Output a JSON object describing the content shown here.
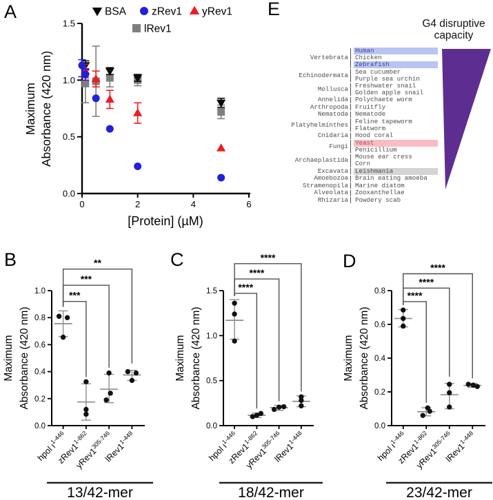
{
  "figure": {
    "background": "#ffffff",
    "panel_letters": {
      "a": "A",
      "b": "B",
      "c": "C",
      "d": "D",
      "e": "E"
    }
  },
  "colors": {
    "bsa_black": "#0a0a0a",
    "zrev1_blue": "#2020dd",
    "yrev1_red": "#ed1c24",
    "lrev1_gray": "#7f7f7f",
    "bracket_gray": "#4d4d4d",
    "mean_err_gray": "#8c8c8c",
    "point_black": "#111111",
    "triangle_purple": "#5e2d91",
    "hl_blue": "#b9c4f0",
    "hl_red": "#f9bdc1",
    "hl_gray": "#d4d4d4"
  },
  "phylo": {
    "heading_line1": "G4 disruptive",
    "heading_line2": "capacity",
    "groups": [
      {
        "name": "Vertebrata",
        "species": [
          {
            "label": "Human",
            "highlight": "blue"
          },
          {
            "label": "Chicken",
            "highlight": ""
          },
          {
            "label": "Zebrafish",
            "highlight": "blue"
          }
        ]
      },
      {
        "name": "Echinodermata",
        "species": [
          {
            "label": "Sea cucumber",
            "highlight": ""
          },
          {
            "label": "Purple sea urchin",
            "highlight": ""
          }
        ]
      },
      {
        "name": "Mollusca",
        "species": [
          {
            "label": "Freshwater snail",
            "highlight": ""
          },
          {
            "label": "Golden apple snail",
            "highlight": ""
          }
        ]
      },
      {
        "name": "Annelida",
        "species": [
          {
            "label": "Polychaete worm",
            "highlight": ""
          }
        ]
      },
      {
        "name": "Arthropoda",
        "species": [
          {
            "label": "Fruitfly",
            "highlight": ""
          }
        ]
      },
      {
        "name": "Nematoda",
        "species": [
          {
            "label": "Nematode",
            "highlight": ""
          }
        ]
      },
      {
        "name": "Platyhelminthes",
        "species": [
          {
            "label": "Feline tapeworm",
            "highlight": ""
          },
          {
            "label": "Flatworm",
            "highlight": ""
          }
        ]
      },
      {
        "name": "Cnidaria",
        "species": [
          {
            "label": "Hood coral",
            "highlight": ""
          }
        ]
      },
      {
        "name": "Fungi",
        "species": [
          {
            "label": "Yeast",
            "highlight": "red"
          },
          {
            "label": "Penicillium",
            "highlight": ""
          }
        ]
      },
      {
        "name": "Archaeplastida",
        "species": [
          {
            "label": "Mouse ear cress",
            "highlight": ""
          },
          {
            "label": "Corn",
            "highlight": ""
          }
        ]
      },
      {
        "name": "Excavata",
        "species": [
          {
            "label": "Leishmania",
            "highlight": "gray"
          }
        ]
      },
      {
        "name": "Amoebozoa",
        "species": [
          {
            "label": "Brain eating amoeba",
            "highlight": ""
          }
        ]
      },
      {
        "name": "Stramenopila",
        "species": [
          {
            "label": "Marine diatom",
            "highlight": ""
          }
        ]
      },
      {
        "name": "Alveolata",
        "species": [
          {
            "label": "Zooxanthellae",
            "highlight": ""
          }
        ]
      },
      {
        "name": "Rhizaria",
        "species": [
          {
            "label": "Powdery scab",
            "highlight": ""
          }
        ]
      }
    ]
  },
  "chart_data": [
    {
      "id": "A",
      "type": "scatter",
      "xlabel": "[Protein] (µM)",
      "ylabel": "Maximum Absorbance (420 nm)",
      "ylabel_lines": [
        "Maximum",
        "Absorbance (420 nm)"
      ],
      "xlim": [
        0,
        6
      ],
      "xticks": [
        0,
        2,
        4,
        6
      ],
      "xtick_labels": [
        "0",
        "2",
        "4",
        "6"
      ],
      "ylim": [
        0,
        1.5
      ],
      "yticks": [
        0,
        0.5,
        1.0,
        1.5
      ],
      "ytick_labels": [
        "0.0",
        "0.5",
        "1.0",
        "1.5"
      ],
      "legend_position": "top-center",
      "grid": false,
      "series": [
        {
          "name": "BSA",
          "marker": "triangle-down",
          "color": "#0a0a0a",
          "points": [
            {
              "x": 0.12,
              "y": 1.13,
              "lo": 1.09,
              "hi": 1.17
            },
            {
              "x": 1,
              "y": 1.08,
              "lo": 1.05,
              "hi": 1.11
            },
            {
              "x": 2,
              "y": 1.02,
              "lo": 0.99,
              "hi": 1.05
            },
            {
              "x": 5,
              "y": 0.8,
              "lo": 0.76,
              "hi": 0.84
            }
          ]
        },
        {
          "name": "zRev1",
          "marker": "circle",
          "color": "#2020dd",
          "points": [
            {
              "x": 0,
              "y": 1.13,
              "lo": 1.03,
              "hi": 1.18
            },
            {
              "x": 0.12,
              "y": 1.05,
              "lo": 1.0,
              "hi": 1.1
            },
            {
              "x": 0.5,
              "y": 0.84
            },
            {
              "x": 1,
              "y": 0.57
            },
            {
              "x": 2,
              "y": 0.24
            },
            {
              "x": 5,
              "y": 0.14
            }
          ]
        },
        {
          "name": "yRev1",
          "marker": "triangle-up",
          "color": "#ed1c24",
          "points": [
            {
              "x": 0.12,
              "y": 1.08,
              "lo": 1.02,
              "hi": 1.14
            },
            {
              "x": 0.5,
              "y": 1.01,
              "lo": 0.94,
              "hi": 1.08
            },
            {
              "x": 1,
              "y": 0.83,
              "lo": 0.75,
              "hi": 0.91
            },
            {
              "x": 2,
              "y": 0.71,
              "lo": 0.62,
              "hi": 0.8
            },
            {
              "x": 5,
              "y": 0.4
            }
          ]
        },
        {
          "name": "lRev1",
          "marker": "square",
          "color": "#7f7f7f",
          "points": [
            {
              "x": 0.12,
              "y": 0.97,
              "lo": 0.8,
              "hi": 1.1
            },
            {
              "x": 0.5,
              "y": 0.99,
              "lo": 0.68,
              "hi": 1.3
            },
            {
              "x": 1,
              "y": 1.02,
              "lo": 0.94,
              "hi": 1.1
            },
            {
              "x": 2,
              "y": 1.0,
              "lo": 0.95,
              "hi": 1.04
            },
            {
              "x": 5,
              "y": 0.72,
              "lo": 0.66,
              "hi": 0.78
            }
          ]
        }
      ]
    },
    {
      "id": "B",
      "type": "dot-plot",
      "xlabel_group": "13/42-mer",
      "ylabel": "Maximum Absorbance (420 nm)",
      "ylabel_lines": [
        "Maximum",
        "Absorbance (420 nm)"
      ],
      "ylim": [
        0,
        1.0
      ],
      "yticks": [
        0,
        0.2,
        0.4,
        0.6,
        0.8,
        1.0
      ],
      "ytick_labels": [
        "0.0",
        "0.2",
        "0.4",
        "0.6",
        "0.8",
        "1.0"
      ],
      "categories": [
        {
          "base": "hpol ι",
          "sup": "1-446"
        },
        {
          "base": "zRev1",
          "sup": "1-862"
        },
        {
          "base": "yRev1",
          "sup": "305-746"
        },
        {
          "base": "lRev1",
          "sup": "1-448"
        }
      ],
      "groups": [
        {
          "points": [
            0.81,
            0.8,
            0.655
          ],
          "dx": [
            -6,
            6,
            0
          ],
          "mean": 0.755,
          "err_lo": 0.66,
          "err_hi": 0.85
        },
        {
          "points": [
            0.325,
            0.12,
            0.085
          ],
          "dx": [
            0,
            0,
            0
          ],
          "mean": 0.175,
          "err_lo": 0.04,
          "err_hi": 0.31
        },
        {
          "points": [
            0.39,
            0.24,
            0.19
          ],
          "dx": [
            0,
            2,
            -4
          ],
          "mean": 0.27,
          "err_lo": 0.17,
          "err_hi": 0.38
        },
        {
          "points": [
            0.4,
            0.39,
            0.335
          ],
          "dx": [
            -6,
            6,
            0
          ],
          "mean": 0.375,
          "err_lo": 0.335,
          "err_hi": 0.41
        }
      ],
      "brackets": [
        {
          "from": 0,
          "to": 1,
          "label": "***",
          "level": 0.92,
          "left_end": 0.88,
          "right_end": 0.36
        },
        {
          "from": 0,
          "to": 2,
          "label": "***",
          "level": 1.04,
          "left_end": 0.88,
          "right_end": 0.43
        },
        {
          "from": 0,
          "to": 3,
          "label": "**",
          "level": 1.16,
          "left_end": 0.88,
          "right_end": 0.46
        }
      ]
    },
    {
      "id": "C",
      "type": "dot-plot",
      "xlabel_group": "18/42-mer",
      "ylabel": "Maximum Absorbance (420 nm)",
      "ylabel_lines": [
        "Maximum",
        "Absorbance (420 nm)"
      ],
      "ylim": [
        0,
        1.5
      ],
      "yticks": [
        0,
        0.5,
        1.0,
        1.5
      ],
      "ytick_labels": [
        "0.0",
        "0.5",
        "1.0",
        "1.5"
      ],
      "categories": [
        {
          "base": "hpol ι",
          "sup": "1-446"
        },
        {
          "base": "zRev1",
          "sup": "1-862"
        },
        {
          "base": "yRev1",
          "sup": "305-746"
        },
        {
          "base": "lRev1",
          "sup": "1-448"
        }
      ],
      "groups": [
        {
          "points": [
            1.36,
            1.24,
            0.94
          ],
          "dx": [
            0,
            0,
            0
          ],
          "mean": 1.17,
          "err_lo": 0.96,
          "err_hi": 1.4
        },
        {
          "points": [
            0.1,
            0.135,
            0.115
          ],
          "dx": [
            -6,
            6,
            0
          ],
          "mean": 0.115,
          "err_lo": 0.09,
          "err_hi": 0.14
        },
        {
          "points": [
            0.18,
            0.205,
            0.21
          ],
          "dx": [
            -7,
            0,
            7
          ],
          "mean": 0.2,
          "err_lo": 0.17,
          "err_hi": 0.225
        },
        {
          "points": [
            0.32,
            0.28,
            0.22
          ],
          "dx": [
            0,
            0,
            0
          ],
          "mean": 0.27,
          "err_lo": 0.21,
          "err_hi": 0.33
        }
      ],
      "brackets": [
        {
          "from": 0,
          "to": 1,
          "label": "****",
          "level": 1.47,
          "left_end": 1.44,
          "right_end": 0.19
        },
        {
          "from": 0,
          "to": 2,
          "label": "****",
          "level": 1.63,
          "left_end": 1.44,
          "right_end": 0.27
        },
        {
          "from": 0,
          "to": 3,
          "label": "****",
          "level": 1.8,
          "left_end": 1.44,
          "right_end": 0.38
        }
      ]
    },
    {
      "id": "D",
      "type": "dot-plot",
      "xlabel_group": "23/42-mer",
      "ylabel": "Maximum Absorbance (420 nm)",
      "ylabel_lines": [
        "Maximum",
        "Absorbance (420 nm)"
      ],
      "ylim": [
        0,
        0.8
      ],
      "yticks": [
        0,
        0.2,
        0.4,
        0.6,
        0.8
      ],
      "ytick_labels": [
        "0.0",
        "0.2",
        "0.4",
        "0.6",
        "0.8"
      ],
      "categories": [
        {
          "base": "hpol ι",
          "sup": "1-446"
        },
        {
          "base": "zRev1",
          "sup": "1-862"
        },
        {
          "base": "yRev1",
          "sup": "305-746"
        },
        {
          "base": "lRev1",
          "sup": "1-448"
        }
      ],
      "groups": [
        {
          "points": [
            0.685,
            0.635,
            0.59
          ],
          "dx": [
            0,
            0,
            0
          ],
          "mean": 0.635,
          "err_lo": 0.585,
          "err_hi": 0.687
        },
        {
          "points": [
            0.105,
            0.085,
            0.06
          ],
          "dx": [
            2,
            5,
            -5
          ],
          "mean": 0.082,
          "err_lo": 0.058,
          "err_hi": 0.106
        },
        {
          "points": [
            0.245,
            0.195,
            0.11
          ],
          "dx": [
            0,
            0,
            0
          ],
          "mean": 0.183,
          "err_lo": 0.1,
          "err_hi": 0.25
        },
        {
          "points": [
            0.245,
            0.24,
            0.232
          ],
          "dx": [
            -6,
            1,
            7
          ],
          "mean": 0.238,
          "err_lo": 0.227,
          "err_hi": 0.25
        }
      ],
      "brackets": [
        {
          "from": 0,
          "to": 1,
          "label": "****",
          "level": 0.735,
          "left_end": 0.715,
          "right_end": 0.135
        },
        {
          "from": 0,
          "to": 2,
          "label": "****",
          "level": 0.815,
          "left_end": 0.715,
          "right_end": 0.29
        },
        {
          "from": 0,
          "to": 3,
          "label": "****",
          "level": 0.9,
          "left_end": 0.715,
          "right_end": 0.28
        }
      ]
    }
  ]
}
